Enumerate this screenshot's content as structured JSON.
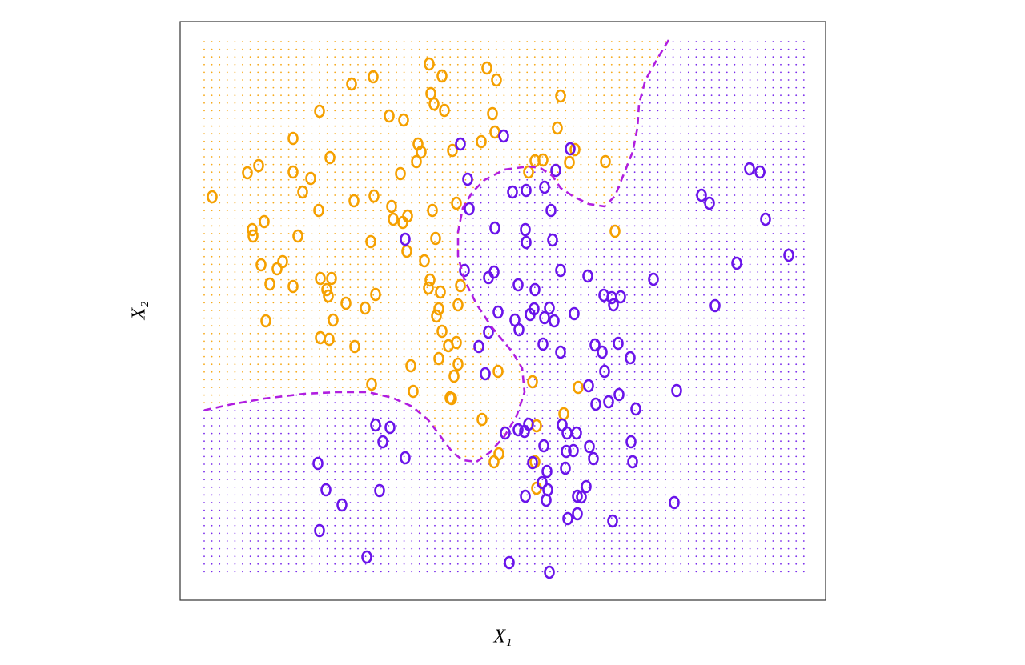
{
  "chart_data": {
    "type": "scatter",
    "xlabel": "X₁",
    "ylabel": "X₂",
    "xlim": [
      0,
      806
    ],
    "ylim": [
      0,
      723
    ],
    "boundary": {
      "color": "#b01ee0",
      "x": [
        610,
        595,
        581,
        573,
        571,
        565,
        553,
        543,
        530,
        510,
        490,
        475,
        465,
        450,
        435,
        405,
        380,
        365,
        353,
        347,
        347,
        355,
        370,
        390,
        415,
        427,
        430,
        420,
        405,
        387,
        370,
        353,
        340,
        325,
        310,
        290,
        265,
        235,
        195,
        155,
        105,
        65,
        28
      ],
      "y": [
        700,
        675,
        650,
        620,
        590,
        560,
        530,
        505,
        492,
        495,
        505,
        515,
        530,
        540,
        542,
        538,
        525,
        510,
        490,
        460,
        430,
        400,
        370,
        340,
        310,
        290,
        260,
        230,
        205,
        185,
        173,
        175,
        185,
        205,
        225,
        242,
        253,
        260,
        260,
        258,
        252,
        245,
        237
      ]
    },
    "series": [
      {
        "color": "#f5a000",
        "x": [
          40,
          84,
          98,
          90,
          91,
          105,
          101,
          112,
          121,
          128,
          141,
          141,
          153,
          163,
          147,
          141,
          174,
          187,
          173,
          175,
          189,
          183,
          185,
          207,
          191,
          175,
          186,
          218,
          107,
          214,
          241,
          217,
          242,
          238,
          244,
          231,
          239,
          261,
          279,
          275,
          264,
          266,
          278,
          284,
          283,
          297,
          301,
          295,
          311,
          327,
          313,
          317,
          330,
          340,
          315,
          319,
          305,
          312,
          310,
          325,
          323,
          320,
          327,
          335,
          345,
          323,
          347,
          342,
          337,
          339,
          288,
          291,
          345,
          350,
          347,
          383,
          395,
          390,
          393,
          376,
          435,
          443,
          453,
          475,
          471,
          486,
          493,
          531,
          543,
          397,
          440,
          497,
          479,
          377,
          445,
          398,
          392,
          443,
          445
        ],
        "y": [
          504,
          534,
          543,
          463,
          455,
          473,
          419,
          395,
          414,
          423,
          577,
          535,
          510,
          527,
          455,
          392,
          611,
          553,
          487,
          402,
          402,
          388,
          380,
          371,
          350,
          328,
          326,
          317,
          349,
          645,
          654,
          499,
          505,
          448,
          382,
          365,
          270,
          605,
          600,
          533,
          492,
          476,
          472,
          480,
          436,
          570,
          560,
          548,
          670,
          655,
          633,
          620,
          612,
          562,
          487,
          452,
          424,
          400,
          390,
          385,
          364,
          355,
          336,
          318,
          322,
          302,
          295,
          280,
          253,
          252,
          293,
          261,
          496,
          393,
          369,
          665,
          650,
          608,
          585,
          573,
          535,
          549,
          550,
          630,
          590,
          547,
          563,
          548,
          461,
          286,
          273,
          266,
          233,
          226,
          218,
          183,
          173,
          173,
          140
        ]
      },
      {
        "color": "#6a14ea",
        "x": [
          350,
          404,
          359,
          361,
          281,
          355,
          385,
          392,
          393,
          415,
          432,
          455,
          469,
          487,
          463,
          431,
          432,
          465,
          475,
          509,
          422,
          443,
          397,
          418,
          437,
          442,
          461,
          455,
          467,
          492,
          423,
          385,
          373,
          453,
          475,
          381,
          529,
          539,
          550,
          541,
          518,
          527,
          547,
          562,
          530,
          510,
          548,
          535,
          519,
          569,
          591,
          620,
          668,
          695,
          760,
          651,
          661,
          731,
          711,
          724,
          244,
          262,
          253,
          281,
          172,
          182,
          202,
          249,
          174,
          233,
          411,
          461,
          406,
          422,
          430,
          435,
          477,
          483,
          495,
          454,
          482,
          491,
          511,
          516,
          563,
          565,
          440,
          458,
          481,
          452,
          459,
          431,
          457,
          496,
          501,
          507,
          484,
          496,
          540,
          617
        ],
        "y": [
          570,
          580,
          526,
          489,
          451,
          412,
          403,
          410,
          465,
          510,
          512,
          516,
          537,
          564,
          487,
          463,
          447,
          450,
          412,
          405,
          394,
          388,
          360,
          350,
          357,
          364,
          365,
          353,
          349,
          358,
          338,
          335,
          317,
          320,
          310,
          283,
          381,
          378,
          379,
          369,
          319,
          310,
          321,
          303,
          286,
          268,
          257,
          248,
          245,
          239,
          401,
          262,
          368,
          421,
          431,
          506,
          496,
          476,
          539,
          535,
          219,
          216,
          198,
          178,
          171,
          138,
          119,
          137,
          87,
          54,
          47,
          35,
          209,
          213,
          211,
          220,
          219,
          209,
          209,
          193,
          186,
          187,
          192,
          177,
          198,
          173,
          172,
          161,
          165,
          147,
          138,
          130,
          125,
          130,
          129,
          142,
          102,
          108,
          99,
          122
        ]
      }
    ]
  }
}
